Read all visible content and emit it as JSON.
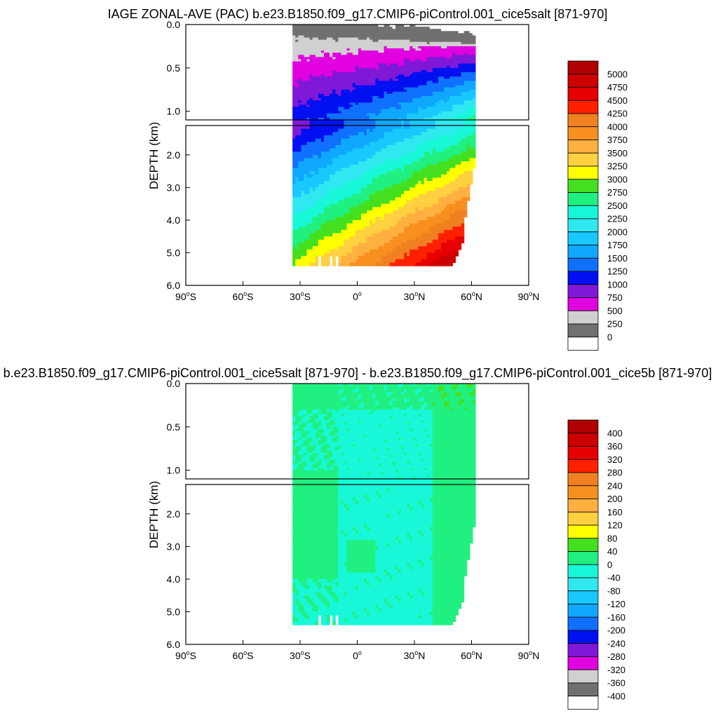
{
  "chart_data": [
    {
      "type": "contour",
      "title": "IAGE ZONAL-AVE (PAC) b.e23.B1850.f09_g17.CMIP6-piControl.001_cice5salt [871-970]",
      "ylabel": "DEPTH (km)",
      "x_ticks": [
        {
          "lat": -90,
          "label": "90",
          "hemi": "S"
        },
        {
          "lat": -60,
          "label": "60",
          "hemi": "S"
        },
        {
          "lat": -30,
          "label": "30",
          "hemi": "S"
        },
        {
          "lat": 0,
          "label": "0",
          "hemi": ""
        },
        {
          "lat": 30,
          "label": "30",
          "hemi": "N"
        },
        {
          "lat": 60,
          "label": "60",
          "hemi": "N"
        },
        {
          "lat": 90,
          "label": "90",
          "hemi": "N"
        }
      ],
      "xlim": [
        -90,
        90
      ],
      "upper_panel": {
        "ylim": [
          0,
          1.1
        ],
        "y_ticks": [
          {
            "v": 0.0,
            "label": "0.0"
          },
          {
            "v": 0.5,
            "label": "0.5"
          },
          {
            "v": 1.0,
            "label": "1.0"
          }
        ]
      },
      "lower_panel": {
        "ylim": [
          1.1,
          6.0
        ],
        "y_ticks": [
          {
            "v": 2.0,
            "label": "2.0"
          },
          {
            "v": 3.0,
            "label": "3.0"
          },
          {
            "v": 4.0,
            "label": "4.0"
          },
          {
            "v": 5.0,
            "label": "5.0"
          },
          {
            "v": 6.0,
            "label": "6.0"
          }
        ]
      },
      "colorbar_labels": [
        "5000",
        "4750",
        "4500",
        "4250",
        "4000",
        "3750",
        "3500",
        "3250",
        "3000",
        "2750",
        "2500",
        "2250",
        "2000",
        "1750",
        "1500",
        "1250",
        "1000",
        "750",
        "500",
        "250",
        "0"
      ],
      "colorbar_colors": [
        "#b00000",
        "#cc0000",
        "#e60000",
        "#ff2000",
        "#f08020",
        "#f89020",
        "#ffb040",
        "#ffd040",
        "#ffff00",
        "#44e020",
        "#20f080",
        "#18f8d8",
        "#30e8f0",
        "#18c8ff",
        "#10a8ff",
        "#1070ff",
        "#0010f0",
        "#8018d8",
        "#e000e0",
        "#d0d0d0",
        "#707070",
        "#ffffff"
      ],
      "field": "age",
      "ocean_domain": {
        "lat_min": -34,
        "lat_max": 62,
        "max_depth_km": 5.35
      }
    },
    {
      "type": "contour",
      "title": "b.e23.B1850.f09_g17.CMIP6-piControl.001_cice5salt [871-970] - b.e23.B1850.f09_g17.CMIP6-piControl.001_cice5b [871-970]",
      "ylabel": "DEPTH (km)",
      "x_ticks": [
        {
          "lat": -90,
          "label": "90",
          "hemi": "S"
        },
        {
          "lat": -60,
          "label": "60",
          "hemi": "S"
        },
        {
          "lat": -30,
          "label": "30",
          "hemi": "S"
        },
        {
          "lat": 0,
          "label": "0",
          "hemi": ""
        },
        {
          "lat": 30,
          "label": "30",
          "hemi": "N"
        },
        {
          "lat": 60,
          "label": "60",
          "hemi": "N"
        },
        {
          "lat": 90,
          "label": "90",
          "hemi": "N"
        }
      ],
      "xlim": [
        -90,
        90
      ],
      "upper_panel": {
        "ylim": [
          0,
          1.1
        ],
        "y_ticks": [
          {
            "v": 0.0,
            "label": "0.0"
          },
          {
            "v": 0.5,
            "label": "0.5"
          },
          {
            "v": 1.0,
            "label": "1.0"
          }
        ]
      },
      "lower_panel": {
        "ylim": [
          1.1,
          6.0
        ],
        "y_ticks": [
          {
            "v": 2.0,
            "label": "2.0"
          },
          {
            "v": 3.0,
            "label": "3.0"
          },
          {
            "v": 4.0,
            "label": "4.0"
          },
          {
            "v": 5.0,
            "label": "5.0"
          },
          {
            "v": 6.0,
            "label": "6.0"
          }
        ]
      },
      "colorbar_labels": [
        "400",
        "360",
        "320",
        "280",
        "240",
        "200",
        "160",
        "120",
        "80",
        "40",
        "0",
        "-40",
        "-80",
        "-120",
        "-160",
        "-200",
        "-240",
        "-280",
        "-320",
        "-360",
        "-400"
      ],
      "colorbar_colors": [
        "#b00000",
        "#cc0000",
        "#e60000",
        "#ff2000",
        "#f08020",
        "#f89020",
        "#ffb040",
        "#ffd040",
        "#ffff00",
        "#44e020",
        "#20f080",
        "#18f8d8",
        "#30e8f0",
        "#18c8ff",
        "#10a8ff",
        "#1070ff",
        "#0010f0",
        "#8018d8",
        "#e000e0",
        "#d0d0d0",
        "#707070",
        "#ffffff"
      ],
      "field": "diff",
      "ocean_domain": {
        "lat_min": -34,
        "lat_max": 62,
        "max_depth_km": 5.35
      }
    }
  ]
}
